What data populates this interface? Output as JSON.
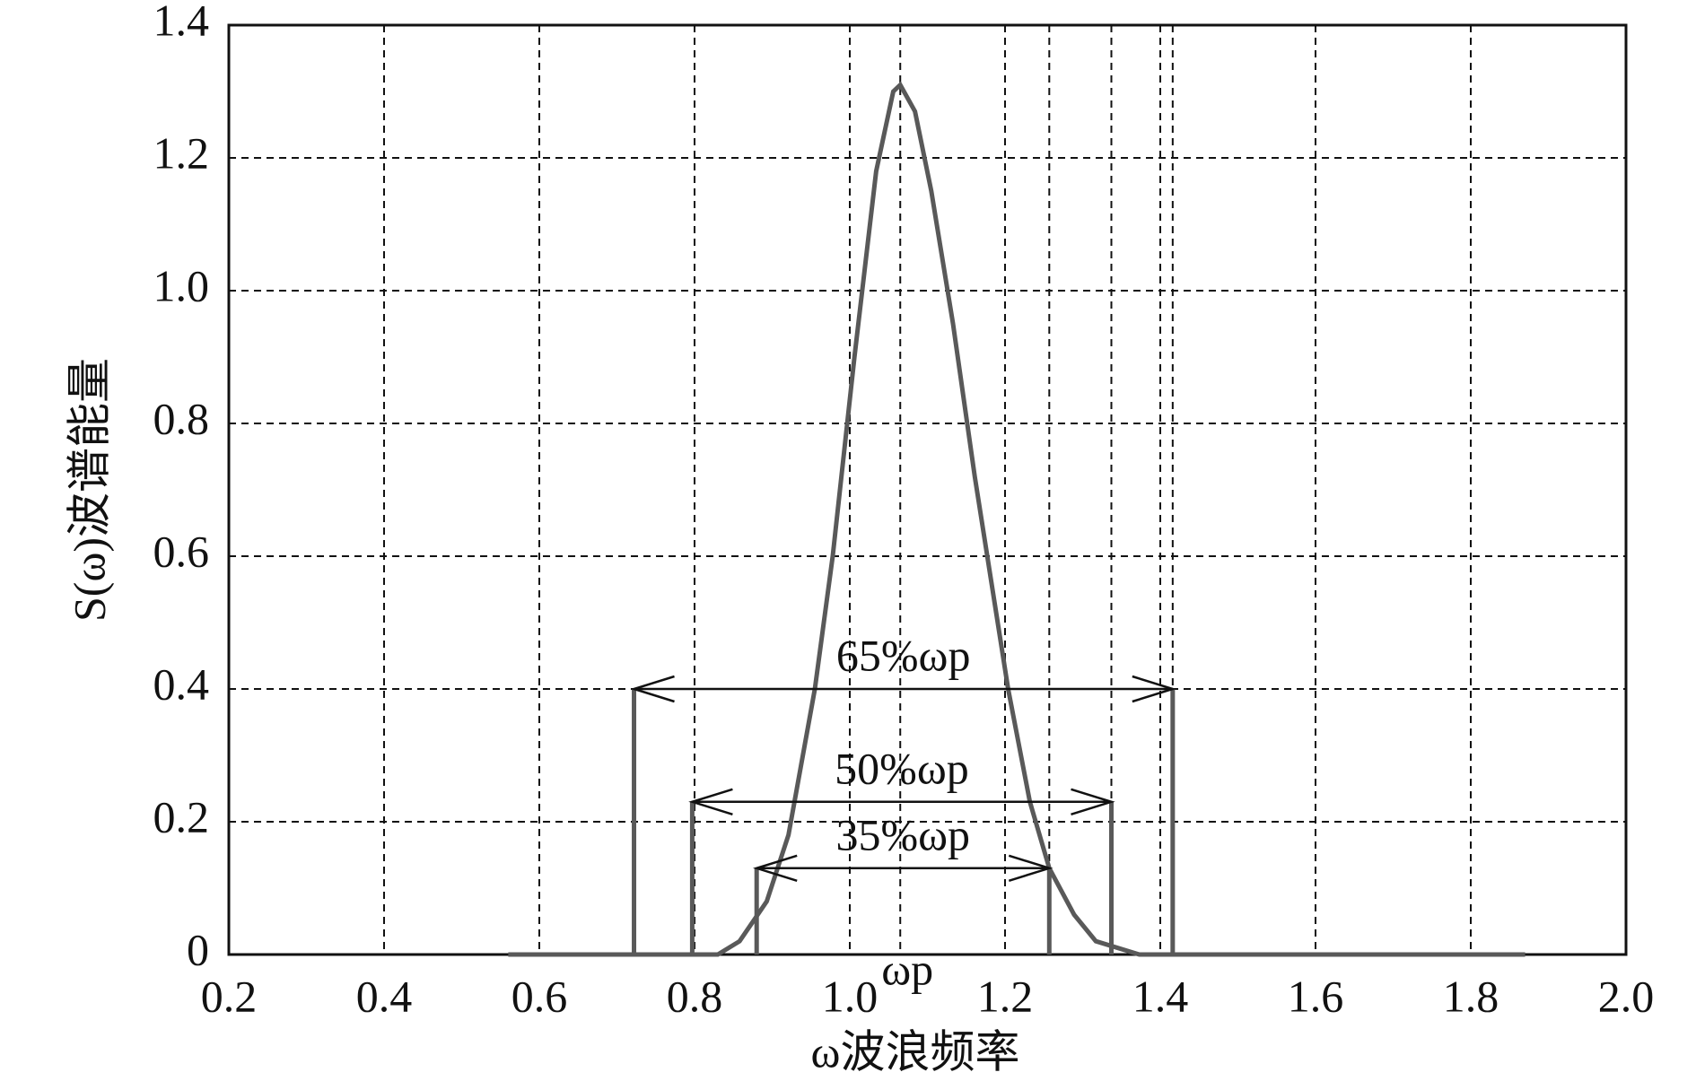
{
  "chart_data": {
    "type": "line",
    "x_label": "ω波浪频率",
    "y_label": "S(ω)波谱能量",
    "x": [
      0.56,
      0.83,
      0.858,
      0.893,
      0.921,
      0.955,
      0.978,
      1.006,
      1.034,
      1.056,
      1.065,
      1.084,
      1.105,
      1.133,
      1.161,
      1.204,
      1.232,
      1.257,
      1.289,
      1.317,
      1.373,
      1.87
    ],
    "values": [
      0,
      0,
      0.02,
      0.08,
      0.18,
      0.4,
      0.6,
      0.9,
      1.18,
      1.3,
      1.31,
      1.27,
      1.15,
      0.95,
      0.72,
      0.4,
      0.23,
      0.13,
      0.06,
      0.02,
      0,
      0
    ],
    "color": "#595959",
    "xlim": [
      0.2,
      2.0
    ],
    "xticks": [
      0.2,
      0.4,
      0.6,
      0.8,
      {
        "value": 1.0,
        "label": "1.0"
      },
      1.2,
      1.4,
      1.6,
      1.8,
      {
        "value": 2.0,
        "label": "2.0"
      }
    ],
    "ylim": [
      0,
      1.4
    ],
    "yticks": [
      0,
      0.2,
      0.4,
      0.6,
      0.8,
      {
        "value": 1.0,
        "label": "1.0"
      },
      1.2,
      1.4
    ],
    "grid": true,
    "peak_label": {
      "text": "ωp",
      "x": 1.065
    },
    "bands": [
      {
        "label": "65%ωp",
        "x": [
          0.722,
          1.416
        ],
        "height": 0.4
      },
      {
        "label": "50%ωp",
        "x": [
          0.797,
          1.337
        ],
        "height": 0.23
      },
      {
        "label": "35%ωp",
        "x": [
          0.88,
          1.257
        ],
        "height": 0.13
      }
    ]
  }
}
